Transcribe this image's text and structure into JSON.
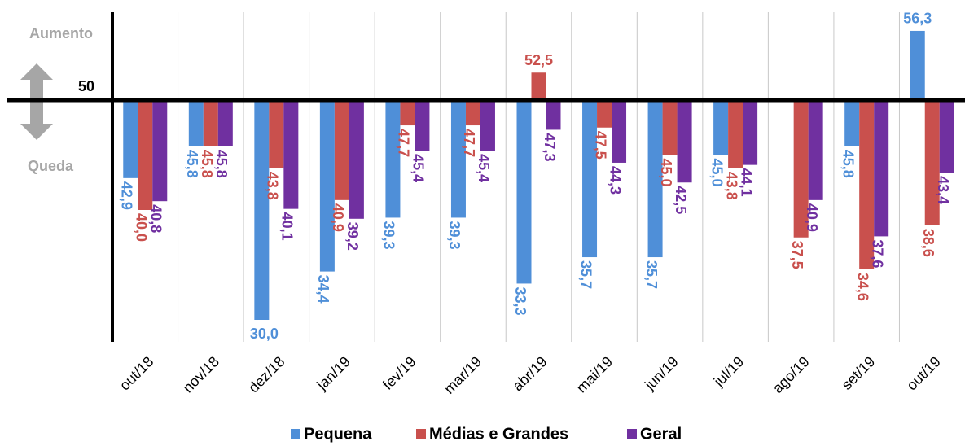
{
  "chart_data": {
    "type": "bar",
    "categories": [
      "out/18",
      "nov/18",
      "dez/18",
      "jan/19",
      "fev/19",
      "mar/19",
      "abr/19",
      "mai/19",
      "jun/19",
      "jul/19",
      "ago/19",
      "set/19",
      "out/19"
    ],
    "series": [
      {
        "name": "Pequena",
        "color": "#4f8fd8",
        "values": [
          42.9,
          45.8,
          30.0,
          34.4,
          39.3,
          39.3,
          33.3,
          35.7,
          35.7,
          45.0,
          null,
          45.8,
          56.3
        ],
        "value_labels": [
          "42,9",
          "45,8",
          "30,0",
          "34,4",
          "39,3",
          "39,3",
          "33,3",
          "35,7",
          "35,7",
          "45,0",
          null,
          "45,8",
          "56,3"
        ]
      },
      {
        "name": "Médias e Grandes",
        "color": "#c9504d",
        "values": [
          40.0,
          45.8,
          43.8,
          40.9,
          47.7,
          47.7,
          52.5,
          47.5,
          45.0,
          43.8,
          37.5,
          34.6,
          38.6
        ],
        "value_labels": [
          "40,0",
          "45,8",
          "43,8",
          "40,9",
          "47,7",
          "47,7",
          "52,5",
          "47,5",
          "45,0",
          "43,8",
          "37,5",
          "34,6",
          "38,6"
        ]
      },
      {
        "name": "Geral",
        "color": "#7030a0",
        "values": [
          40.8,
          45.8,
          40.1,
          39.2,
          45.4,
          45.4,
          47.3,
          44.3,
          42.5,
          44.1,
          40.9,
          37.6,
          43.4
        ],
        "value_labels": [
          "40,8",
          "45,8",
          "40,1",
          "39,2",
          "45,4",
          "45,4",
          "47,3",
          "44,3",
          "42,5",
          "44,1",
          "40,9",
          "37,6",
          "43,4"
        ]
      }
    ],
    "ylim": [
      28,
      58
    ],
    "yticks": [
      50
    ],
    "annotations": [
      "Aumento",
      "Queda"
    ]
  }
}
